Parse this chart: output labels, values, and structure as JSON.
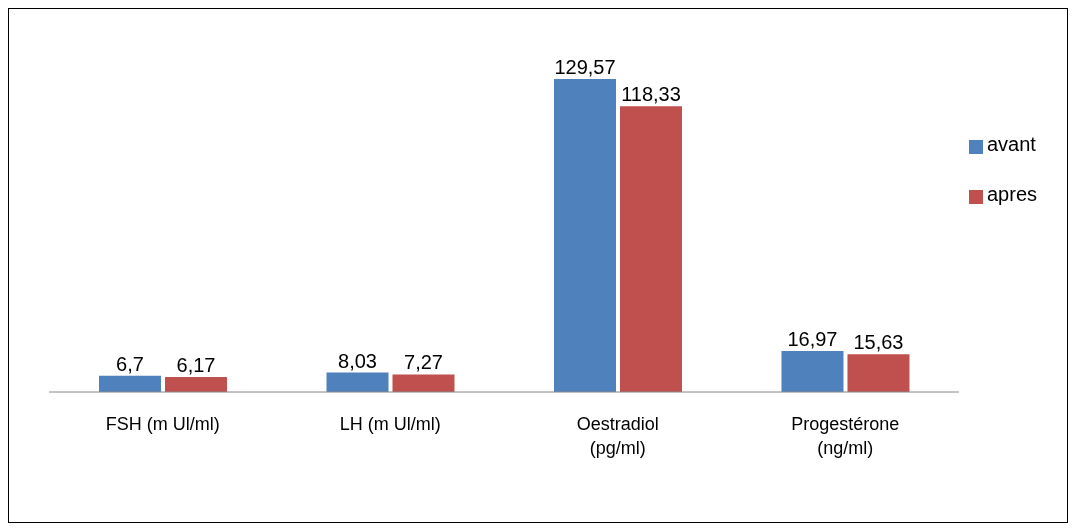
{
  "chart_data": {
    "type": "bar",
    "categories": [
      "FSH (m Ul/ml)",
      "LH (m Ul/ml)",
      "Oestradiol (pg/ml)",
      "Progestérone (ng/ml)"
    ],
    "series": [
      {
        "name": "avant",
        "color": "#4f81bd",
        "values": [
          6.7,
          8.03,
          129.57,
          16.97
        ],
        "value_labels": [
          "6,7",
          "8,03",
          "129,57",
          "16,97"
        ]
      },
      {
        "name": "apres",
        "color": "#c0504d",
        "values": [
          6.17,
          7.27,
          118.33,
          15.63
        ],
        "value_labels": [
          "6,17",
          "7,27",
          "118,33",
          "15,63"
        ]
      }
    ],
    "legend": "right",
    "grid": false
  }
}
